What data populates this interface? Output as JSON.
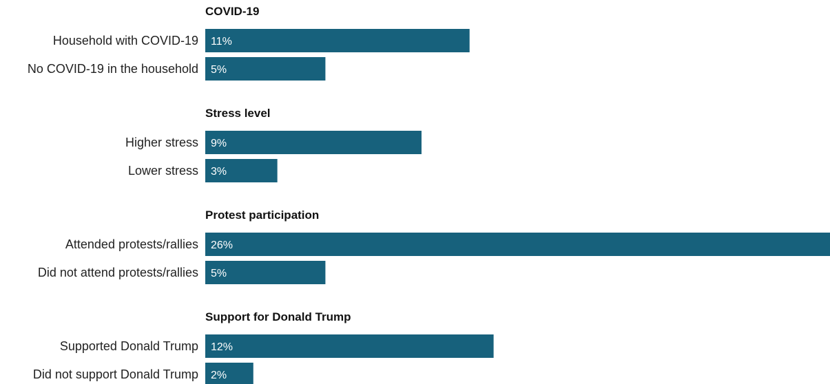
{
  "chart_data": {
    "type": "bar",
    "orientation": "horizontal",
    "grid": false,
    "bar_color": "#17617c",
    "max_value": 26,
    "groups": [
      {
        "title": "COVID-19",
        "items": [
          {
            "label": "Household with COVID-19",
            "value": 11,
            "value_label": "11%"
          },
          {
            "label": "No COVID-19 in the household",
            "value": 5,
            "value_label": "5%"
          }
        ]
      },
      {
        "title": "Stress level",
        "items": [
          {
            "label": "Higher stress",
            "value": 9,
            "value_label": "9%"
          },
          {
            "label": "Lower stress",
            "value": 3,
            "value_label": "3%"
          }
        ]
      },
      {
        "title": "Protest participation",
        "items": [
          {
            "label": "Attended protests/rallies",
            "value": 26,
            "value_label": "26%"
          },
          {
            "label": "Did not attend protests/rallies",
            "value": 5,
            "value_label": "5%"
          }
        ]
      },
      {
        "title": "Support for Donald Trump",
        "items": [
          {
            "label": "Supported Donald Trump",
            "value": 12,
            "value_label": "12%"
          },
          {
            "label": "Did not support Donald Trump",
            "value": 2,
            "value_label": "2%"
          }
        ]
      }
    ]
  }
}
